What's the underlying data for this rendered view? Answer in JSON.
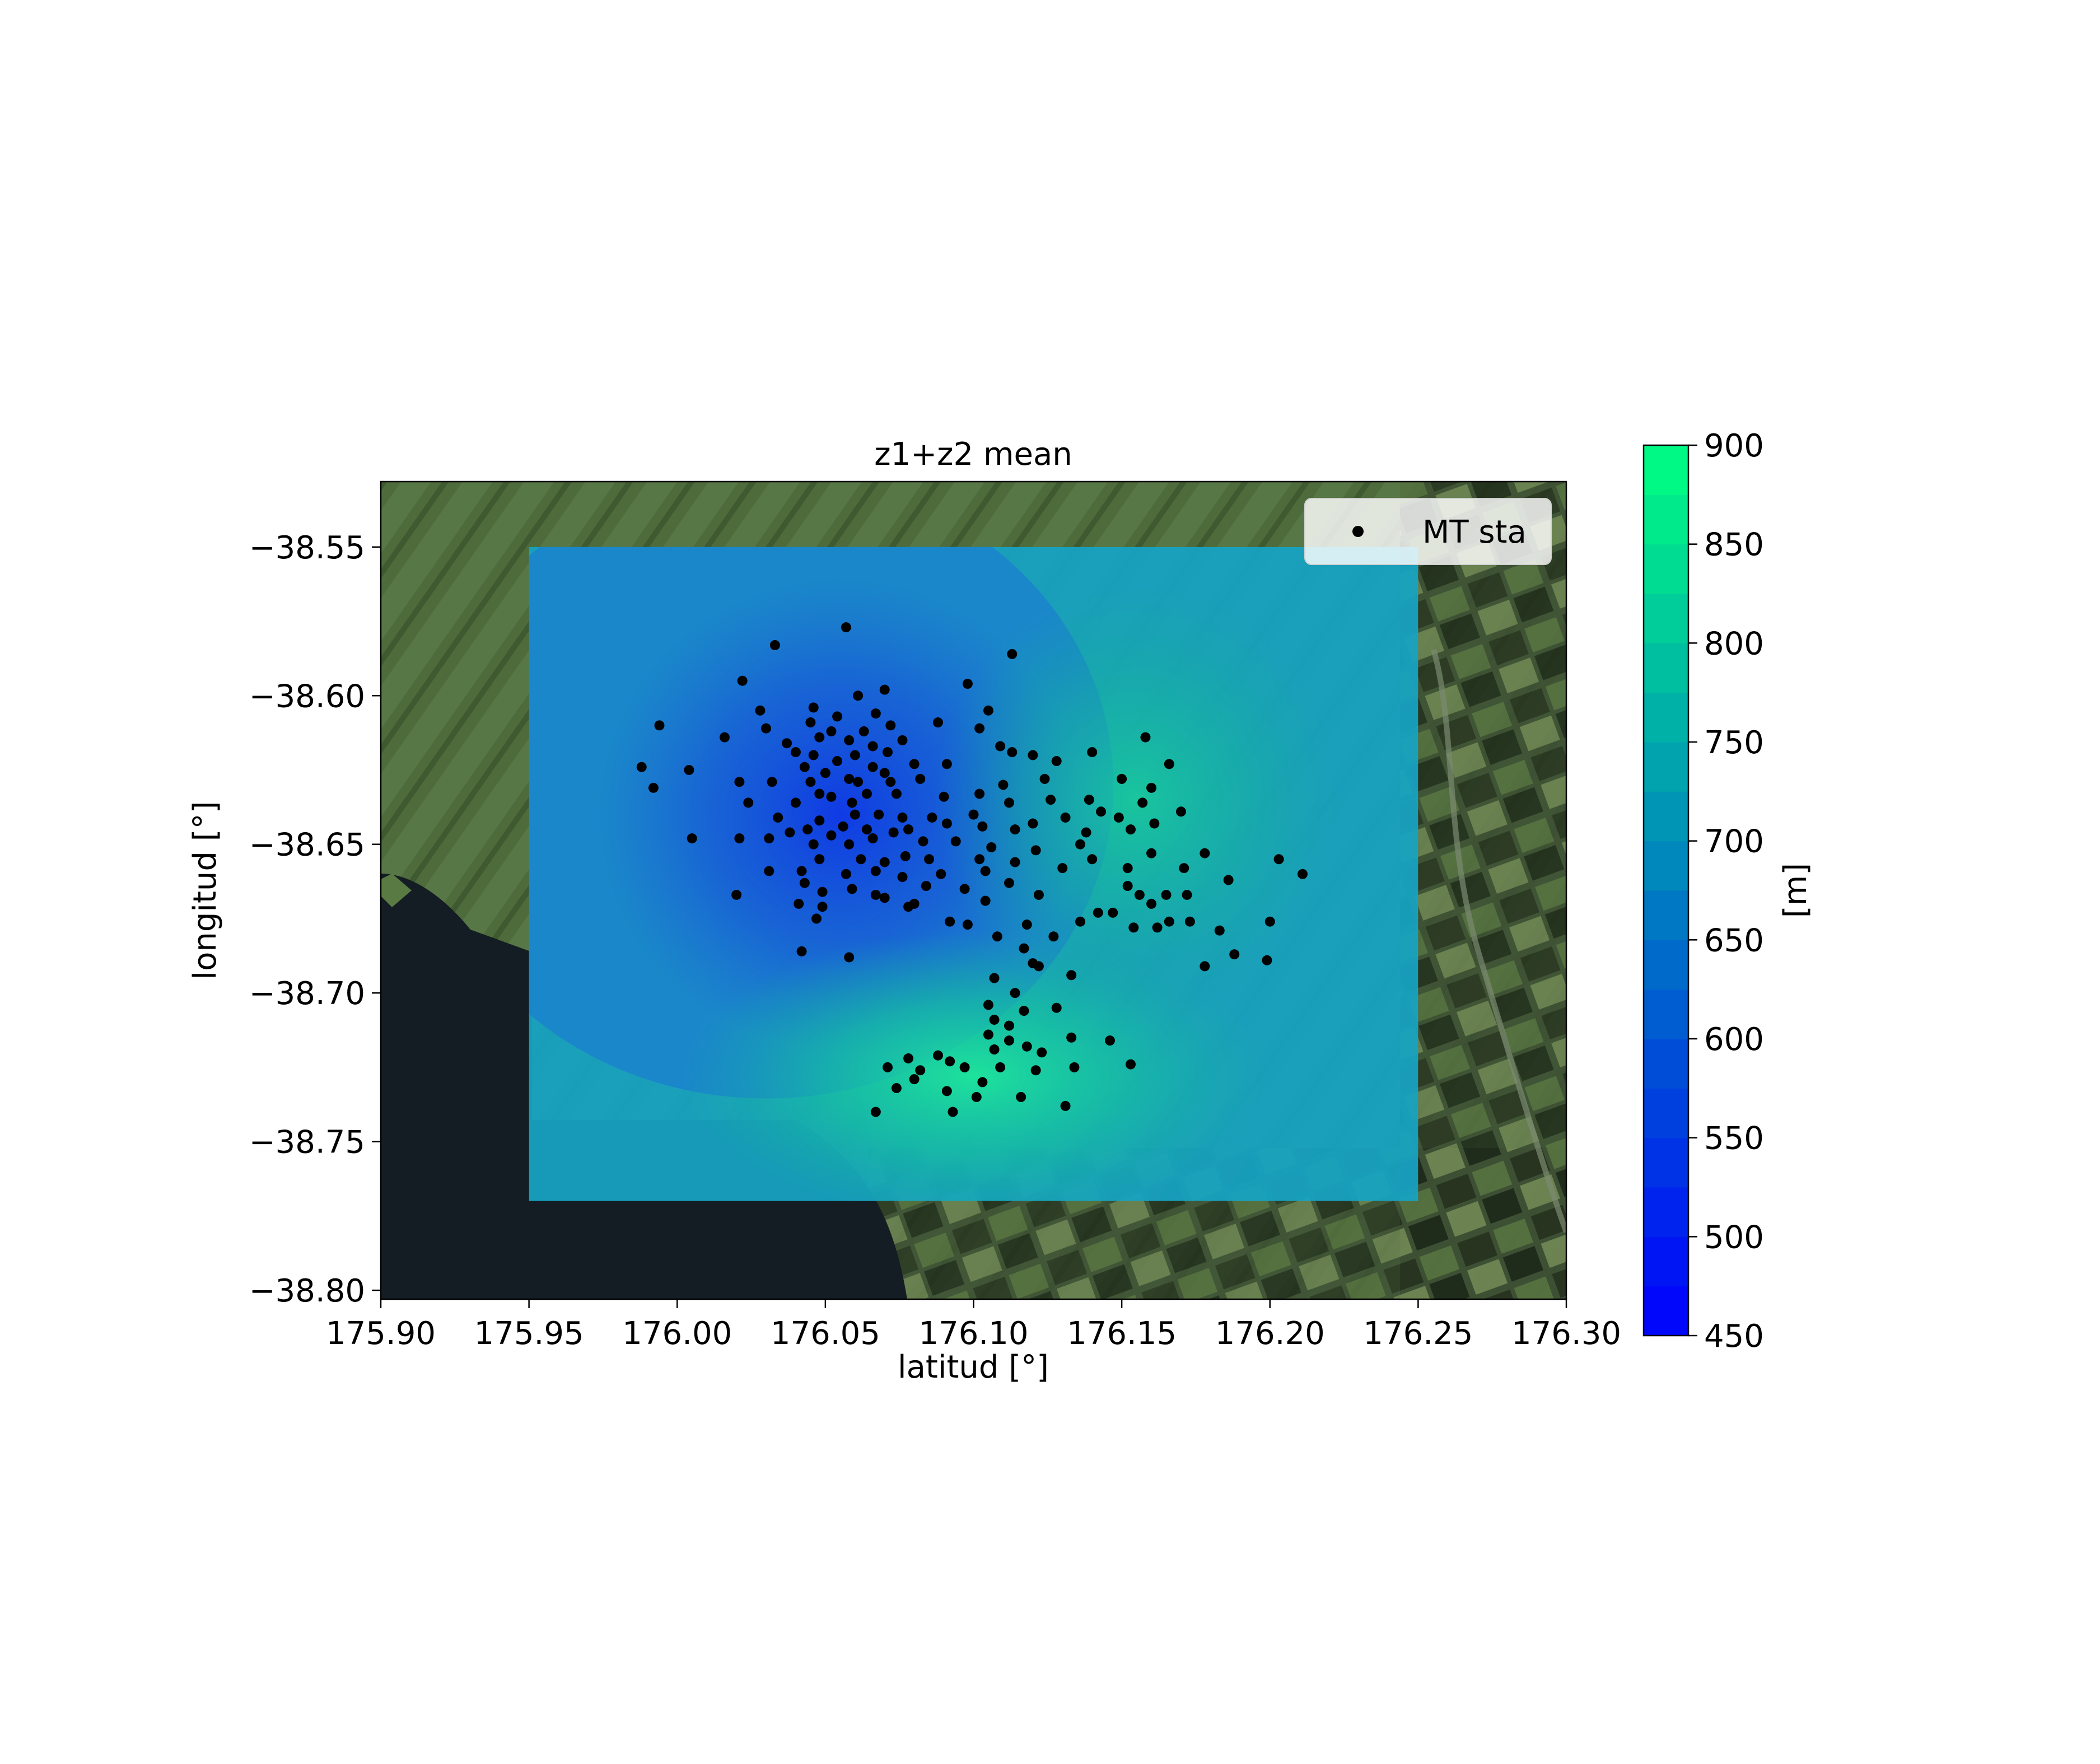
{
  "chart_data": {
    "type": "scatter",
    "title": "z1+z2 mean",
    "xlabel": "latitud [°]",
    "ylabel": "longitud [°]",
    "xlim": [
      175.9,
      176.3
    ],
    "ylim": [
      -38.803,
      -38.528
    ],
    "xticks": [
      175.9,
      175.95,
      176.0,
      176.05,
      176.1,
      176.15,
      176.2,
      176.25,
      176.3
    ],
    "xtick_labels": [
      "175.90",
      "175.95",
      "176.00",
      "176.05",
      "176.10",
      "176.15",
      "176.20",
      "176.25",
      "176.30"
    ],
    "yticks": [
      -38.55,
      -38.6,
      -38.65,
      -38.7,
      -38.75,
      -38.8
    ],
    "ytick_labels": [
      "−38.55",
      "−38.60",
      "−38.65",
      "−38.70",
      "−38.75",
      "−38.80"
    ],
    "background": "satellite imagery (map tiles)",
    "contour_field": {
      "type": "filled contour",
      "extent_x": [
        175.95,
        176.25
      ],
      "extent_y": [
        -38.77,
        -38.55
      ],
      "base_value": 690,
      "features": [
        {
          "kind": "low",
          "x": 176.055,
          "y": -38.64,
          "value": 560
        },
        {
          "kind": "high",
          "x": 176.1,
          "y": -38.728,
          "value": 860
        },
        {
          "kind": "high",
          "x": 176.155,
          "y": -38.635,
          "value": 790
        }
      ]
    },
    "colorbar": {
      "label": "[m]",
      "min": 450,
      "max": 900,
      "ticks": [
        450,
        500,
        550,
        600,
        650,
        700,
        750,
        800,
        850,
        900
      ],
      "tick_labels": [
        "450",
        "500",
        "550",
        "600",
        "650",
        "700",
        "750",
        "800",
        "850",
        "900"
      ],
      "colormap": "winter",
      "color_min": "#0000ff",
      "color_max": "#00ff80"
    },
    "legend": {
      "position": "top-right",
      "entries": [
        "MT sta"
      ]
    },
    "series": [
      {
        "name": "MT sta",
        "marker": "point",
        "color": "#000000",
        "points": [
          [
            176.057,
            -38.577
          ],
          [
            176.033,
            -38.583
          ],
          [
            176.113,
            -38.586
          ],
          [
            176.022,
            -38.595
          ],
          [
            176.098,
            -38.596
          ],
          [
            176.07,
            -38.598
          ],
          [
            176.061,
            -38.6
          ],
          [
            176.028,
            -38.605
          ],
          [
            176.046,
            -38.604
          ],
          [
            176.054,
            -38.607
          ],
          [
            176.067,
            -38.606
          ],
          [
            176.105,
            -38.605
          ],
          [
            175.994,
            -38.61
          ],
          [
            176.03,
            -38.611
          ],
          [
            176.045,
            -38.609
          ],
          [
            176.052,
            -38.612
          ],
          [
            176.063,
            -38.612
          ],
          [
            176.072,
            -38.61
          ],
          [
            176.088,
            -38.609
          ],
          [
            176.102,
            -38.611
          ],
          [
            176.016,
            -38.614
          ],
          [
            176.037,
            -38.616
          ],
          [
            176.048,
            -38.614
          ],
          [
            176.058,
            -38.615
          ],
          [
            176.066,
            -38.617
          ],
          [
            176.076,
            -38.615
          ],
          [
            176.158,
            -38.614
          ],
          [
            176.04,
            -38.619
          ],
          [
            176.046,
            -38.62
          ],
          [
            176.054,
            -38.622
          ],
          [
            176.06,
            -38.62
          ],
          [
            176.071,
            -38.619
          ],
          [
            176.109,
            -38.617
          ],
          [
            176.113,
            -38.619
          ],
          [
            176.12,
            -38.62
          ],
          [
            176.14,
            -38.619
          ],
          [
            175.988,
            -38.624
          ],
          [
            176.004,
            -38.625
          ],
          [
            176.043,
            -38.624
          ],
          [
            176.05,
            -38.626
          ],
          [
            176.058,
            -38.628
          ],
          [
            176.066,
            -38.624
          ],
          [
            176.07,
            -38.626
          ],
          [
            176.08,
            -38.623
          ],
          [
            176.091,
            -38.623
          ],
          [
            176.128,
            -38.622
          ],
          [
            176.166,
            -38.623
          ],
          [
            175.992,
            -38.631
          ],
          [
            176.021,
            -38.629
          ],
          [
            176.032,
            -38.629
          ],
          [
            176.045,
            -38.629
          ],
          [
            176.052,
            -38.634
          ],
          [
            176.061,
            -38.629
          ],
          [
            176.072,
            -38.629
          ],
          [
            176.082,
            -38.628
          ],
          [
            176.11,
            -38.63
          ],
          [
            176.124,
            -38.628
          ],
          [
            176.15,
            -38.628
          ],
          [
            176.16,
            -38.631
          ],
          [
            176.024,
            -38.636
          ],
          [
            176.04,
            -38.636
          ],
          [
            176.048,
            -38.633
          ],
          [
            176.059,
            -38.636
          ],
          [
            176.064,
            -38.633
          ],
          [
            176.074,
            -38.633
          ],
          [
            176.09,
            -38.634
          ],
          [
            176.102,
            -38.633
          ],
          [
            176.112,
            -38.636
          ],
          [
            176.126,
            -38.635
          ],
          [
            176.139,
            -38.635
          ],
          [
            176.157,
            -38.636
          ],
          [
            176.034,
            -38.641
          ],
          [
            176.048,
            -38.642
          ],
          [
            176.06,
            -38.64
          ],
          [
            176.068,
            -38.64
          ],
          [
            176.076,
            -38.641
          ],
          [
            176.086,
            -38.641
          ],
          [
            176.1,
            -38.64
          ],
          [
            176.12,
            -38.643
          ],
          [
            176.131,
            -38.641
          ],
          [
            176.143,
            -38.639
          ],
          [
            176.149,
            -38.641
          ],
          [
            176.161,
            -38.643
          ],
          [
            176.17,
            -38.639
          ],
          [
            176.038,
            -38.646
          ],
          [
            176.044,
            -38.645
          ],
          [
            176.052,
            -38.647
          ],
          [
            176.056,
            -38.644
          ],
          [
            176.064,
            -38.645
          ],
          [
            176.073,
            -38.646
          ],
          [
            176.078,
            -38.645
          ],
          [
            176.091,
            -38.643
          ],
          [
            176.103,
            -38.644
          ],
          [
            176.114,
            -38.645
          ],
          [
            176.138,
            -38.646
          ],
          [
            176.153,
            -38.645
          ],
          [
            176.005,
            -38.648
          ],
          [
            176.021,
            -38.648
          ],
          [
            176.031,
            -38.648
          ],
          [
            176.046,
            -38.65
          ],
          [
            176.058,
            -38.65
          ],
          [
            176.066,
            -38.648
          ],
          [
            176.083,
            -38.649
          ],
          [
            176.094,
            -38.649
          ],
          [
            176.106,
            -38.651
          ],
          [
            176.121,
            -38.652
          ],
          [
            176.136,
            -38.65
          ],
          [
            176.16,
            -38.653
          ],
          [
            176.178,
            -38.653
          ],
          [
            176.048,
            -38.655
          ],
          [
            176.062,
            -38.655
          ],
          [
            176.07,
            -38.656
          ],
          [
            176.077,
            -38.654
          ],
          [
            176.085,
            -38.655
          ],
          [
            176.102,
            -38.655
          ],
          [
            176.114,
            -38.656
          ],
          [
            176.14,
            -38.655
          ],
          [
            176.203,
            -38.655
          ],
          [
            176.031,
            -38.659
          ],
          [
            176.042,
            -38.659
          ],
          [
            176.057,
            -38.66
          ],
          [
            176.067,
            -38.659
          ],
          [
            176.076,
            -38.661
          ],
          [
            176.089,
            -38.66
          ],
          [
            176.104,
            -38.659
          ],
          [
            176.13,
            -38.658
          ],
          [
            176.152,
            -38.658
          ],
          [
            176.171,
            -38.658
          ],
          [
            176.211,
            -38.66
          ],
          [
            176.02,
            -38.667
          ],
          [
            176.043,
            -38.663
          ],
          [
            176.049,
            -38.666
          ],
          [
            176.059,
            -38.665
          ],
          [
            176.067,
            -38.667
          ],
          [
            176.084,
            -38.664
          ],
          [
            176.097,
            -38.665
          ],
          [
            176.112,
            -38.663
          ],
          [
            176.122,
            -38.667
          ],
          [
            176.152,
            -38.664
          ],
          [
            176.156,
            -38.667
          ],
          [
            176.165,
            -38.667
          ],
          [
            176.172,
            -38.667
          ],
          [
            176.186,
            -38.662
          ],
          [
            176.041,
            -38.67
          ],
          [
            176.049,
            -38.671
          ],
          [
            176.07,
            -38.668
          ],
          [
            176.078,
            -38.671
          ],
          [
            176.08,
            -38.67
          ],
          [
            176.104,
            -38.669
          ],
          [
            176.142,
            -38.673
          ],
          [
            176.147,
            -38.673
          ],
          [
            176.16,
            -38.67
          ],
          [
            176.047,
            -38.675
          ],
          [
            176.092,
            -38.676
          ],
          [
            176.098,
            -38.677
          ],
          [
            176.118,
            -38.677
          ],
          [
            176.136,
            -38.676
          ],
          [
            176.166,
            -38.676
          ],
          [
            176.173,
            -38.676
          ],
          [
            176.2,
            -38.676
          ],
          [
            176.108,
            -38.681
          ],
          [
            176.127,
            -38.681
          ],
          [
            176.154,
            -38.678
          ],
          [
            176.162,
            -38.678
          ],
          [
            176.183,
            -38.679
          ],
          [
            176.042,
            -38.686
          ],
          [
            176.058,
            -38.688
          ],
          [
            176.117,
            -38.685
          ],
          [
            176.12,
            -38.69
          ],
          [
            176.188,
            -38.687
          ],
          [
            176.122,
            -38.691
          ],
          [
            176.178,
            -38.691
          ],
          [
            176.199,
            -38.689
          ],
          [
            176.107,
            -38.695
          ],
          [
            176.133,
            -38.694
          ],
          [
            176.114,
            -38.7
          ],
          [
            176.105,
            -38.704
          ],
          [
            176.117,
            -38.706
          ],
          [
            176.128,
            -38.705
          ],
          [
            176.107,
            -38.709
          ],
          [
            176.112,
            -38.711
          ],
          [
            176.105,
            -38.714
          ],
          [
            176.112,
            -38.716
          ],
          [
            176.133,
            -38.715
          ],
          [
            176.146,
            -38.716
          ],
          [
            176.107,
            -38.719
          ],
          [
            176.118,
            -38.718
          ],
          [
            176.123,
            -38.72
          ],
          [
            176.078,
            -38.722
          ],
          [
            176.088,
            -38.721
          ],
          [
            176.092,
            -38.723
          ],
          [
            176.071,
            -38.725
          ],
          [
            176.082,
            -38.726
          ],
          [
            176.097,
            -38.725
          ],
          [
            176.109,
            -38.725
          ],
          [
            176.121,
            -38.726
          ],
          [
            176.134,
            -38.725
          ],
          [
            176.153,
            -38.724
          ],
          [
            176.08,
            -38.729
          ],
          [
            176.103,
            -38.73
          ],
          [
            176.074,
            -38.732
          ],
          [
            176.091,
            -38.733
          ],
          [
            176.101,
            -38.735
          ],
          [
            176.116,
            -38.735
          ],
          [
            176.067,
            -38.74
          ],
          [
            176.093,
            -38.74
          ],
          [
            176.131,
            -38.738
          ]
        ]
      }
    ]
  }
}
